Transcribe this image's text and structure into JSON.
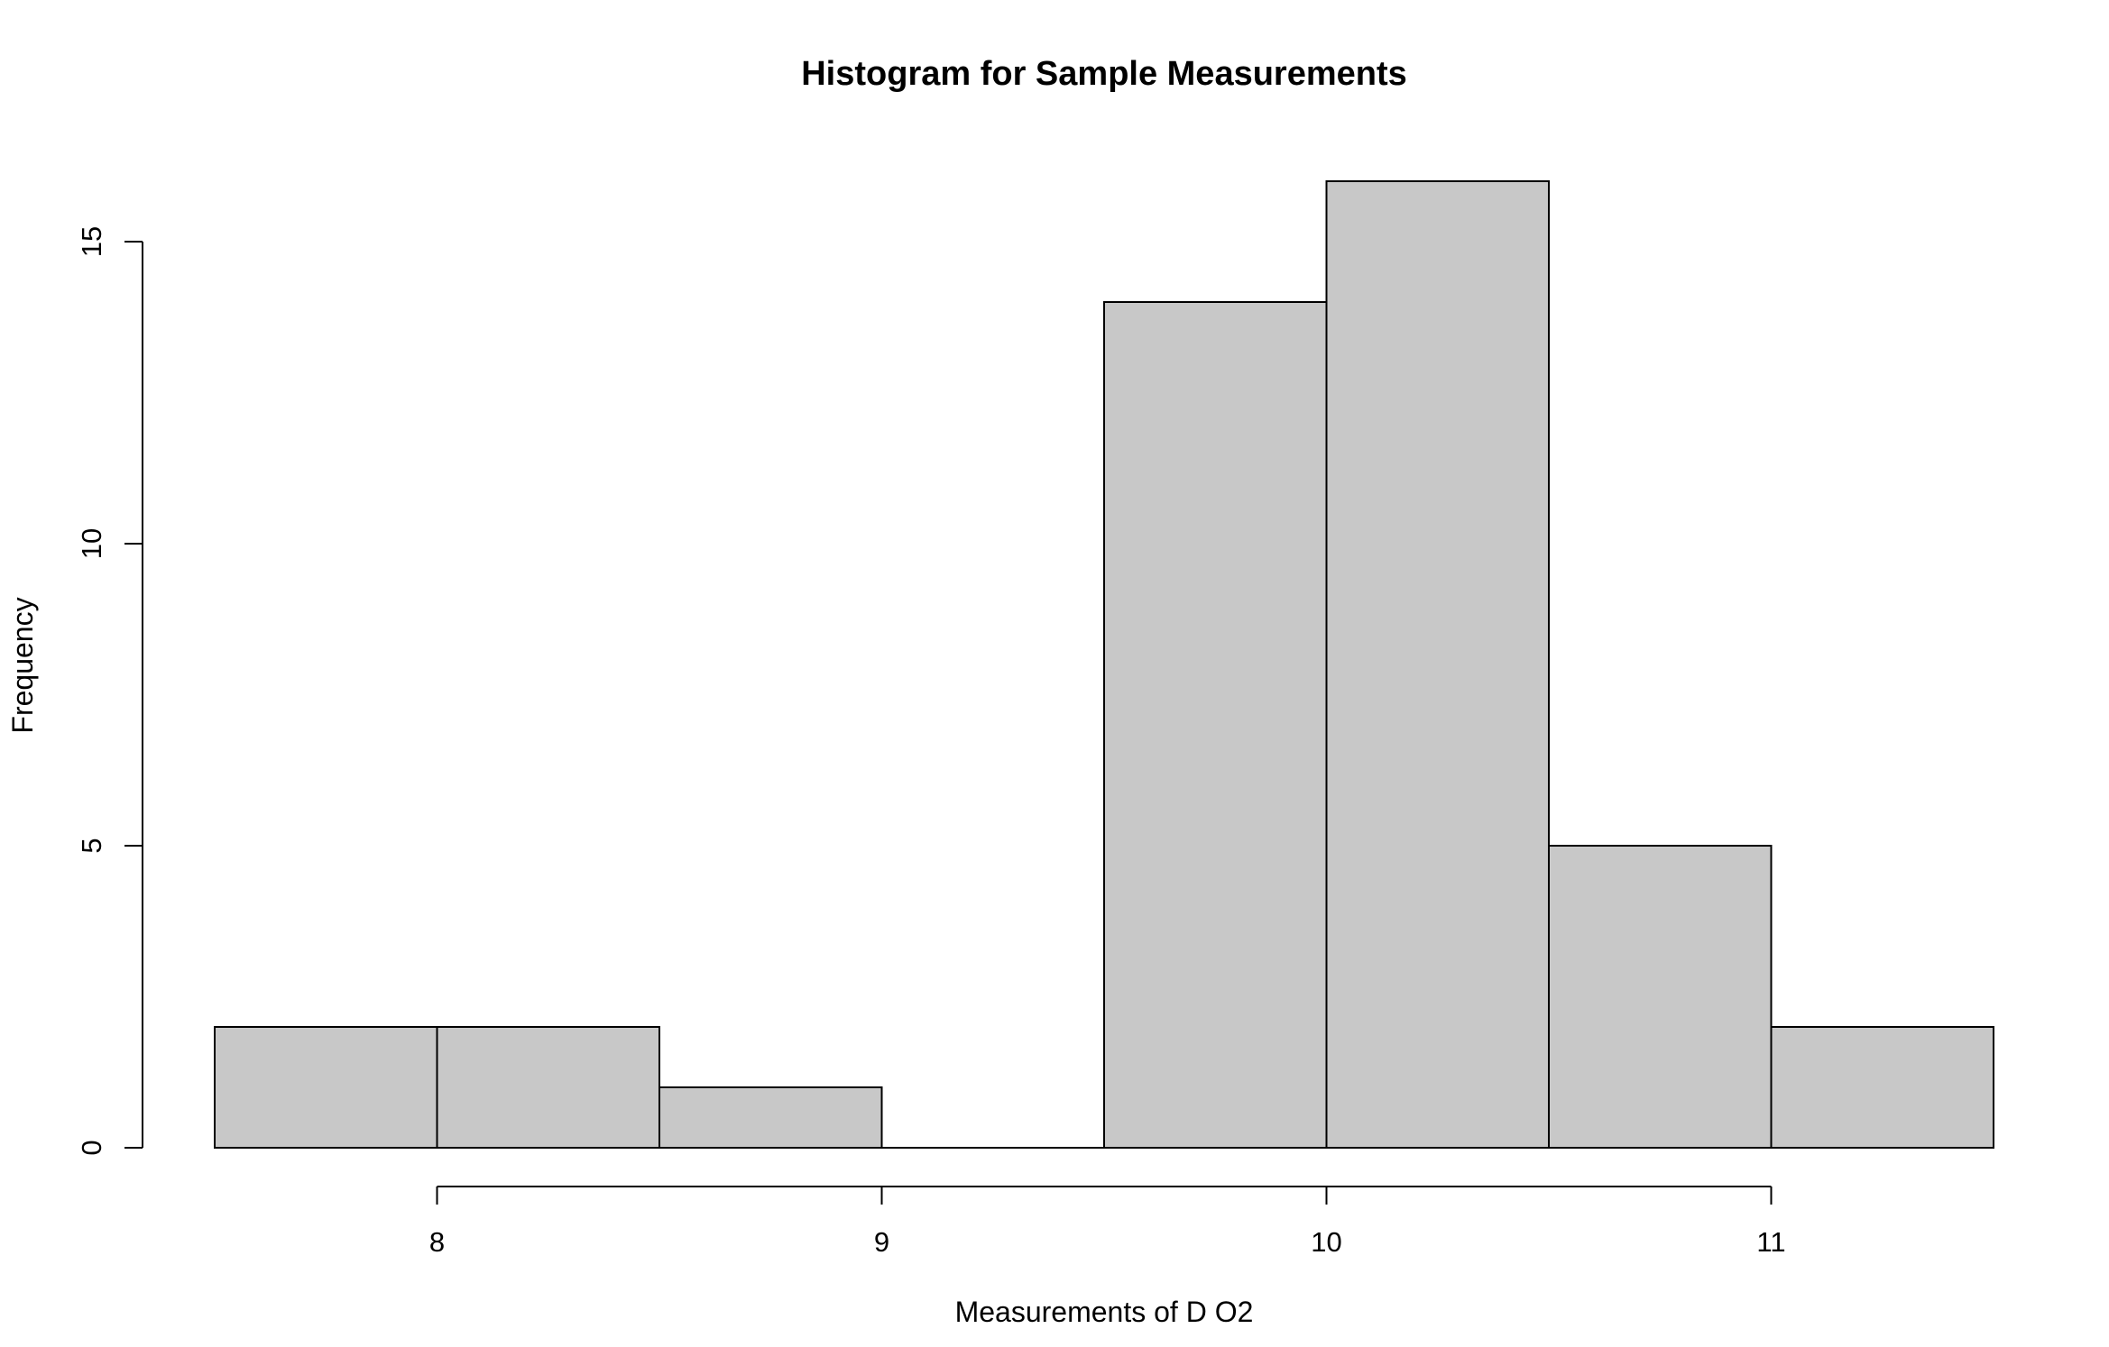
{
  "chart_data": {
    "type": "bar",
    "subtype": "histogram",
    "title": "Histogram for Sample Measurements",
    "xlabel": "Measurements of D O2",
    "ylabel": "Frequency",
    "bins": [
      {
        "start": 7.5,
        "end": 8.0,
        "count": 2
      },
      {
        "start": 8.0,
        "end": 8.5,
        "count": 2
      },
      {
        "start": 8.5,
        "end": 9.0,
        "count": 1
      },
      {
        "start": 9.0,
        "end": 9.5,
        "count": 0
      },
      {
        "start": 9.5,
        "end": 10.0,
        "count": 14
      },
      {
        "start": 10.0,
        "end": 10.5,
        "count": 16
      },
      {
        "start": 10.5,
        "end": 11.0,
        "count": 5
      },
      {
        "start": 11.0,
        "end": 11.5,
        "count": 2
      }
    ],
    "xticks": [
      8,
      9,
      10,
      11
    ],
    "yticks": [
      0,
      5,
      10,
      15
    ],
    "xlim": [
      7.5,
      11.5
    ],
    "ylim": [
      0,
      16
    ],
    "grid": false,
    "bar_color": "#c8c8c8",
    "edge_color": "#000000"
  }
}
